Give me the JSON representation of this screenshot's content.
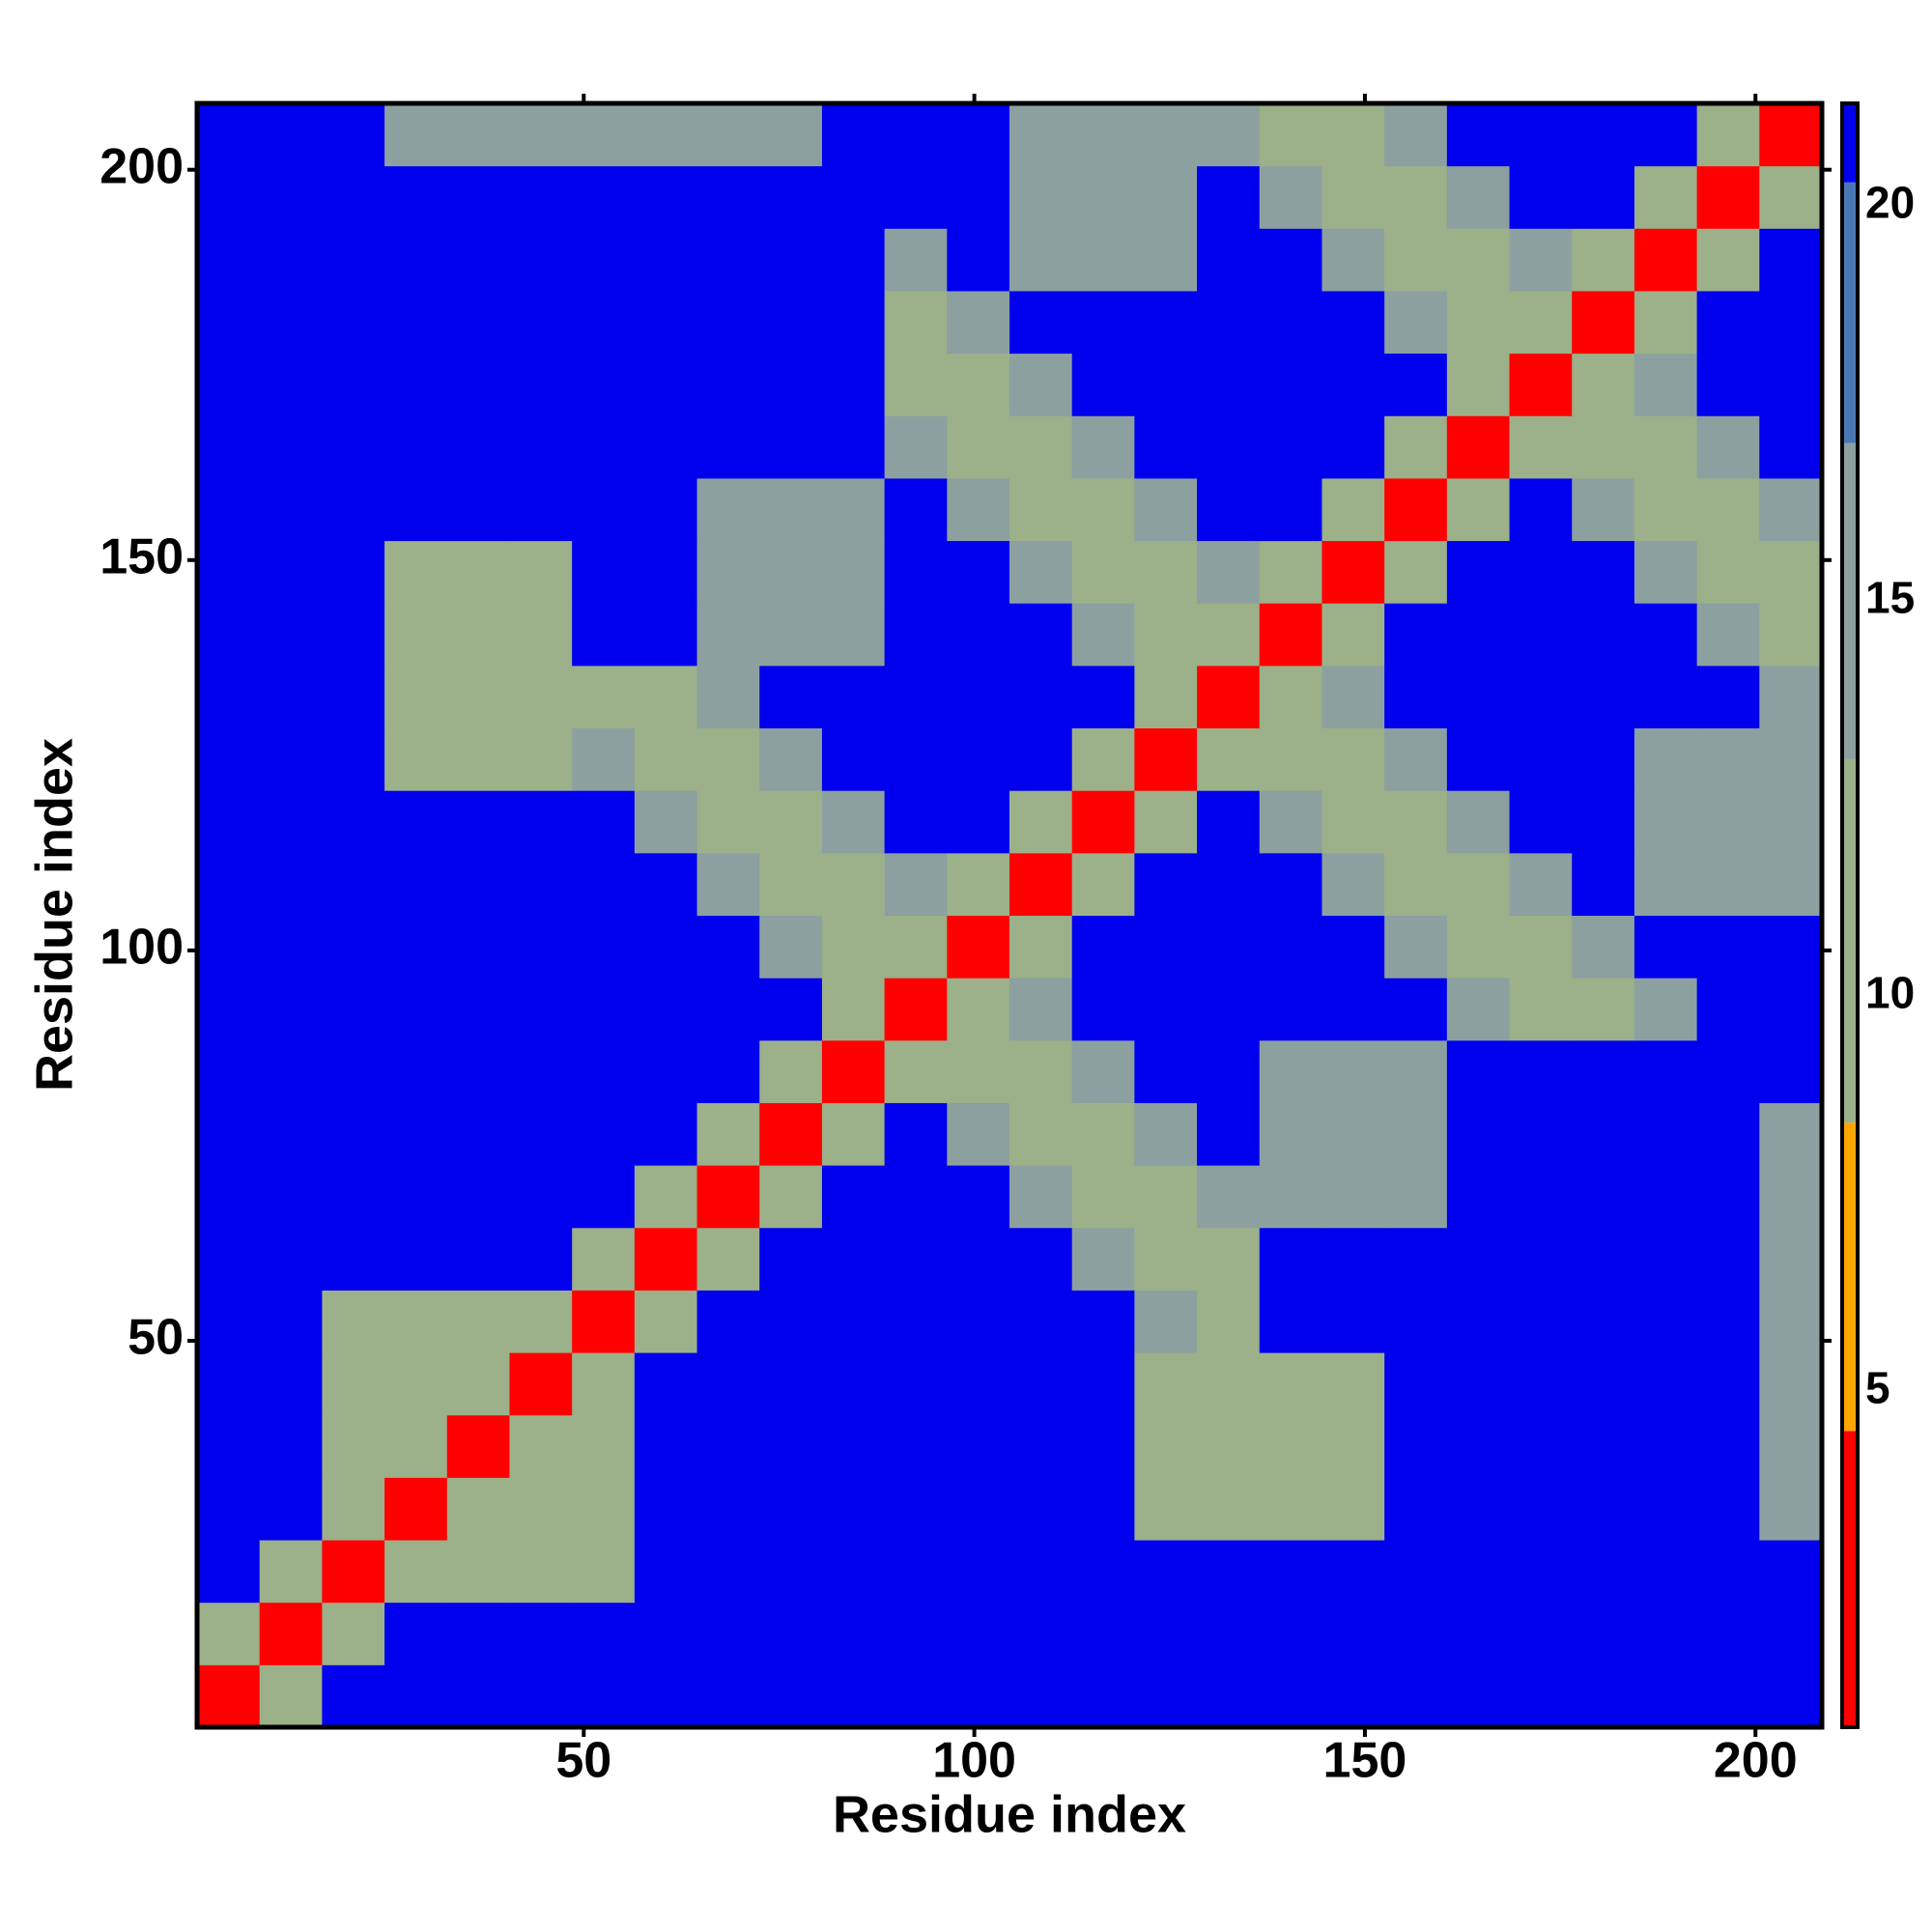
{
  "chart_data": {
    "type": "heatmap",
    "xlabel": "Residue index",
    "ylabel": "Residue index",
    "bins": [
      0.5,
      8.5,
      16.5,
      24.5,
      32.5,
      40.5,
      48.5,
      56.5,
      64.5,
      72.5,
      80.5,
      88.5,
      96.5,
      104.5,
      112.5,
      120.5,
      128.5,
      136.5,
      144.5,
      152.5,
      160.5,
      168.5,
      176.5,
      184.5,
      192.5,
      200.5,
      208.5
    ],
    "xlim": [
      0.5,
      208.5
    ],
    "ylim": [
      0.5,
      208.5
    ],
    "xticks": [
      50,
      100,
      150,
      200
    ],
    "yticks": [
      50,
      100,
      150,
      200
    ],
    "zlim": [
      0.75,
      21.3
    ],
    "zticks": [
      5,
      10,
      15,
      20
    ],
    "colorscale": [
      [
        4.5,
        "#ff0000"
      ],
      [
        8.4,
        "#ffa500"
      ],
      [
        13,
        "#9cb08a"
      ],
      [
        17,
        "#8ca0a0"
      ],
      [
        20.3,
        "#4a78b4"
      ],
      [
        21.3,
        "#0000ee"
      ]
    ],
    "z": [
      [
        3,
        9,
        21,
        21,
        21,
        21,
        21,
        21,
        21,
        21,
        21,
        21,
        21,
        21,
        21,
        21,
        21,
        21,
        21,
        21,
        21,
        21,
        21,
        21,
        21,
        21
      ],
      [
        9,
        3,
        9,
        21,
        21,
        21,
        21,
        21,
        21,
        21,
        21,
        21,
        21,
        21,
        21,
        21,
        21,
        21,
        21,
        21,
        21,
        21,
        21,
        21,
        21,
        21
      ],
      [
        21,
        9,
        3,
        9,
        11,
        11,
        11,
        21,
        21,
        21,
        21,
        21,
        21,
        21,
        21,
        21,
        21,
        21,
        21,
        21,
        21,
        21,
        21,
        21,
        21,
        21
      ],
      [
        21,
        21,
        9,
        3,
        9,
        11,
        11,
        21,
        21,
        21,
        21,
        21,
        21,
        21,
        21,
        13,
        13,
        13,
        13,
        21,
        21,
        21,
        21,
        21,
        21,
        15
      ],
      [
        21,
        21,
        11,
        9,
        3,
        9,
        11,
        21,
        21,
        21,
        21,
        21,
        21,
        21,
        21,
        13,
        13,
        13,
        13,
        21,
        21,
        21,
        21,
        21,
        21,
        15
      ],
      [
        21,
        21,
        11,
        11,
        9,
        3,
        9,
        21,
        21,
        21,
        21,
        21,
        21,
        21,
        21,
        13,
        13,
        13,
        13,
        21,
        21,
        21,
        21,
        21,
        21,
        15
      ],
      [
        21,
        21,
        11,
        11,
        11,
        9,
        3,
        9,
        21,
        21,
        21,
        21,
        21,
        21,
        21,
        14,
        10,
        21,
        21,
        21,
        21,
        21,
        21,
        21,
        21,
        15
      ],
      [
        21,
        21,
        21,
        21,
        21,
        21,
        9,
        3,
        9,
        21,
        21,
        21,
        21,
        21,
        14,
        10,
        10,
        21,
        21,
        21,
        21,
        21,
        21,
        21,
        21,
        15
      ],
      [
        21,
        21,
        21,
        21,
        21,
        21,
        21,
        9,
        3,
        9,
        21,
        21,
        21,
        14,
        10,
        10,
        14,
        15,
        15,
        15,
        21,
        21,
        21,
        21,
        21,
        15
      ],
      [
        21,
        21,
        21,
        21,
        21,
        21,
        21,
        21,
        9,
        3,
        9,
        21,
        14,
        10,
        10,
        14,
        21,
        15,
        15,
        15,
        21,
        21,
        21,
        21,
        21,
        15
      ],
      [
        21,
        21,
        21,
        21,
        21,
        21,
        21,
        21,
        21,
        9,
        3,
        9,
        10,
        10,
        14,
        21,
        21,
        15,
        15,
        15,
        21,
        21,
        21,
        21,
        21,
        21
      ],
      [
        21,
        21,
        21,
        21,
        21,
        21,
        21,
        21,
        21,
        21,
        9,
        3,
        9,
        14,
        21,
        21,
        21,
        21,
        21,
        21,
        14,
        10,
        10,
        14,
        21,
        21
      ],
      [
        21,
        21,
        21,
        21,
        21,
        21,
        21,
        21,
        21,
        14,
        10,
        9,
        3,
        9,
        21,
        21,
        21,
        21,
        21,
        14,
        10,
        10,
        14,
        21,
        21,
        21
      ],
      [
        21,
        21,
        21,
        21,
        21,
        21,
        21,
        21,
        14,
        10,
        10,
        14,
        9,
        3,
        9,
        21,
        21,
        21,
        14,
        10,
        10,
        14,
        21,
        15,
        15,
        15
      ],
      [
        21,
        21,
        21,
        21,
        21,
        21,
        21,
        14,
        10,
        10,
        14,
        21,
        21,
        9,
        3,
        9,
        21,
        14,
        10,
        10,
        14,
        21,
        21,
        15,
        15,
        15
      ],
      [
        21,
        21,
        21,
        13,
        13,
        13,
        14,
        10,
        10,
        14,
        21,
        21,
        21,
        21,
        9,
        3,
        9,
        10,
        10,
        14,
        21,
        21,
        21,
        15,
        15,
        15
      ],
      [
        21,
        21,
        21,
        13,
        13,
        13,
        10,
        10,
        14,
        21,
        21,
        21,
        21,
        21,
        21,
        9,
        3,
        9,
        14,
        21,
        21,
        21,
        21,
        21,
        21,
        14
      ],
      [
        21,
        21,
        21,
        13,
        13,
        13,
        21,
        21,
        15,
        15,
        15,
        21,
        21,
        21,
        14,
        10,
        9,
        3,
        9,
        21,
        21,
        21,
        21,
        21,
        14,
        10
      ],
      [
        21,
        21,
        21,
        13,
        13,
        13,
        21,
        21,
        15,
        15,
        15,
        21,
        21,
        14,
        10,
        10,
        14,
        9,
        3,
        9,
        21,
        21,
        21,
        14,
        10,
        10
      ],
      [
        21,
        21,
        21,
        21,
        21,
        21,
        21,
        21,
        15,
        15,
        15,
        21,
        14,
        10,
        10,
        14,
        21,
        21,
        9,
        3,
        9,
        21,
        14,
        10,
        10,
        14
      ],
      [
        21,
        21,
        21,
        21,
        21,
        21,
        21,
        21,
        21,
        21,
        21,
        14,
        10,
        10,
        14,
        21,
        21,
        21,
        21,
        9,
        3,
        9,
        10,
        10,
        14,
        21
      ],
      [
        21,
        21,
        21,
        21,
        21,
        21,
        21,
        21,
        21,
        21,
        21,
        10,
        10,
        14,
        21,
        21,
        21,
        21,
        21,
        21,
        9,
        3,
        9,
        14,
        21,
        21
      ],
      [
        21,
        21,
        21,
        21,
        21,
        21,
        21,
        21,
        21,
        21,
        21,
        10,
        14,
        21,
        21,
        21,
        21,
        21,
        21,
        14,
        10,
        9,
        3,
        9,
        21,
        21
      ],
      [
        21,
        21,
        21,
        21,
        21,
        21,
        21,
        21,
        21,
        21,
        21,
        14,
        21,
        15,
        15,
        15,
        21,
        21,
        14,
        10,
        10,
        14,
        9,
        3,
        9,
        21
      ],
      [
        21,
        21,
        21,
        21,
        21,
        21,
        21,
        21,
        21,
        21,
        21,
        21,
        21,
        15,
        15,
        15,
        21,
        14,
        10,
        10,
        14,
        21,
        21,
        9,
        3,
        9
      ],
      [
        21,
        21,
        21,
        15,
        15,
        15,
        15,
        15,
        15,
        15,
        21,
        21,
        21,
        15,
        15,
        15,
        14,
        10,
        10,
        14,
        21,
        21,
        21,
        21,
        9,
        3
      ]
    ]
  }
}
